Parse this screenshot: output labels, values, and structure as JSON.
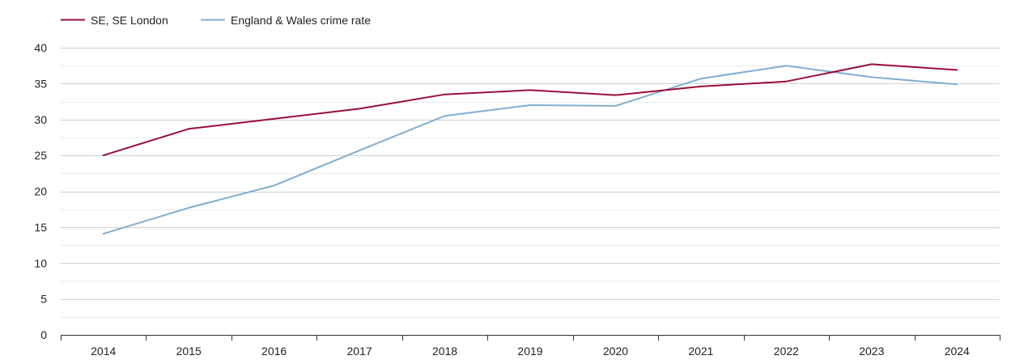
{
  "chart_data": {
    "type": "line",
    "title": "",
    "xlabel": "",
    "ylabel": "",
    "categories": [
      "2014",
      "2015",
      "2016",
      "2017",
      "2018",
      "2019",
      "2020",
      "2021",
      "2022",
      "2023",
      "2024"
    ],
    "series": [
      {
        "name": "SE, SE London",
        "color": "#9a0f34",
        "values": [
          25.0,
          28.7,
          30.1,
          31.5,
          33.5,
          34.1,
          33.4,
          34.6,
          35.3,
          37.7,
          36.9
        ]
      },
      {
        "name": "England & Wales crime rate",
        "color": "#7faed0",
        "values": [
          14.1,
          17.7,
          20.8,
          25.7,
          30.5,
          32.0,
          31.9,
          35.7,
          37.5,
          35.9,
          34.9
        ]
      }
    ],
    "ylim": [
      0,
      40
    ],
    "yticks": [
      0,
      5,
      10,
      15,
      20,
      25,
      30,
      35,
      40
    ],
    "ytick_labels": [
      "0",
      "5",
      "10",
      "15",
      "20",
      "25",
      "30",
      "35",
      "40"
    ],
    "grid": true,
    "minor_grid": true,
    "legend_position": "top-left"
  }
}
